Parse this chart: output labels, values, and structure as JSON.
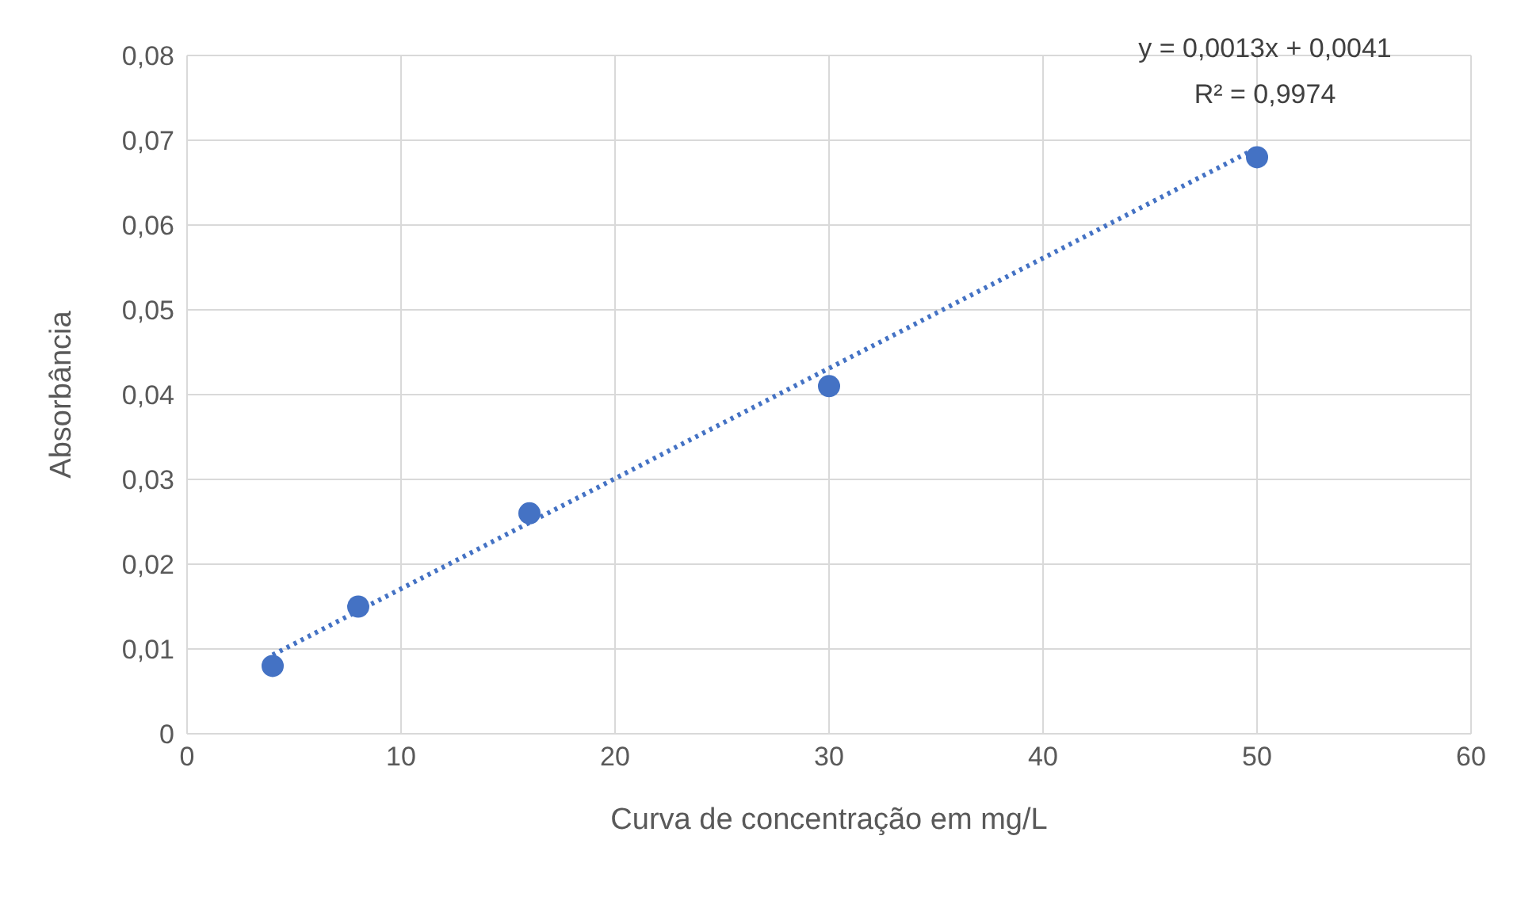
{
  "chart_data": {
    "type": "scatter",
    "xlabel": "Curva de concentração em mg/L",
    "ylabel": "Absorbância",
    "x": [
      4,
      8,
      16,
      30,
      50
    ],
    "series": [
      {
        "color": "#4472c4",
        "values": [
          0.008,
          0.015,
          0.026,
          0.041,
          0.068
        ],
        "marker": "circle"
      },
      {
        "type": "line",
        "color": "#4472c4",
        "x": [
          4,
          50
        ],
        "values": [
          0.0093,
          0.0691
        ],
        "line_style": "dotted",
        "marker": "none"
      }
    ],
    "xlim": [
      0,
      60
    ],
    "xticks": [
      0,
      10,
      20,
      30,
      40,
      50,
      60
    ],
    "ylim": [
      0,
      0.08
    ],
    "yticks": [
      0,
      {
        "value": 0.01,
        "label": "0,01"
      },
      {
        "value": 0.02,
        "label": "0,02"
      },
      {
        "value": 0.03,
        "label": "0,03"
      },
      {
        "value": 0.04,
        "label": "0,04"
      },
      {
        "value": 0.05,
        "label": "0,05"
      },
      {
        "value": 0.06,
        "label": "0,06"
      },
      {
        "value": 0.07,
        "label": "0,07"
      },
      {
        "value": 0.08,
        "label": "0,08"
      }
    ],
    "grid": true,
    "legend": false,
    "annotations": [
      "y = 0,0013x + 0,0041",
      "R² = 0,9974"
    ]
  }
}
